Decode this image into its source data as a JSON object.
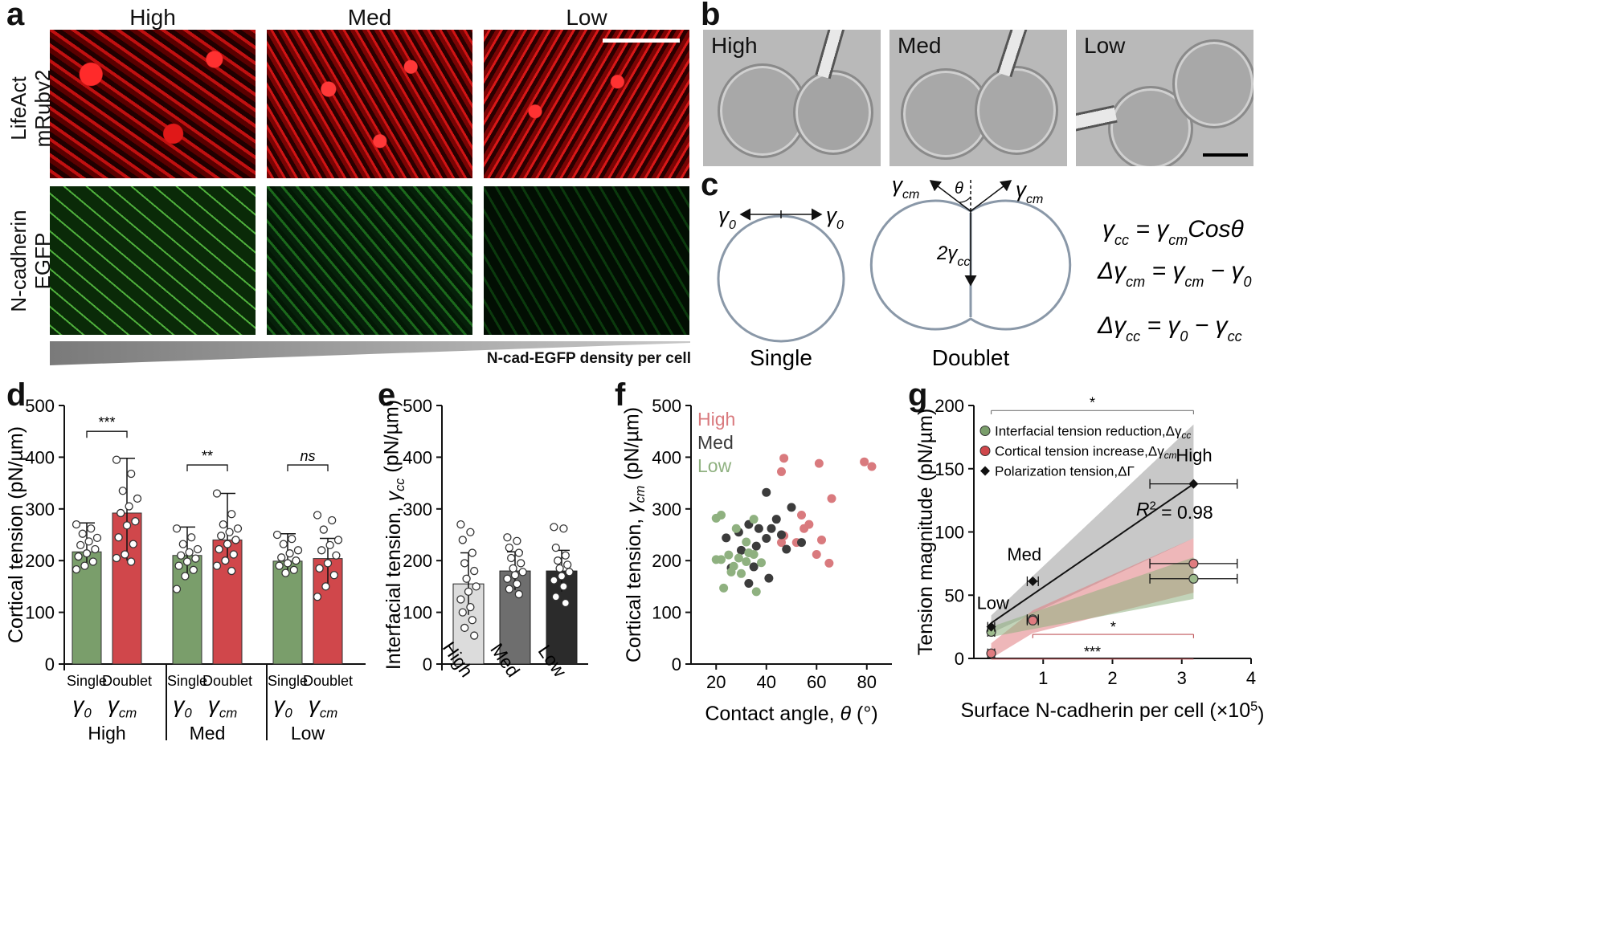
{
  "panels": {
    "a": {
      "letter": "a",
      "columns": [
        "High",
        "Med",
        "Low"
      ],
      "rows": [
        "LifeAct\nmRuby2",
        "N-cadherin\nEGFP"
      ],
      "gradient_label": "N-cad-EGFP density per cell"
    },
    "b": {
      "letter": "b",
      "labels": [
        "High",
        "Med",
        "Low"
      ]
    },
    "c": {
      "letter": "c",
      "single_label": "Single",
      "doublet_label": "Doublet",
      "gamma0": "γ",
      "sub0": "0",
      "gammacm": "γ",
      "subcm": "cm",
      "theta": "θ",
      "two_gamma_cc": "2γ",
      "subcc": "cc",
      "eq1": "γcc = γcm Cosθ",
      "eq2": "Δγcm = γcm − γ0",
      "eq3": "Δγcc = γ0 − γcc"
    },
    "d": {
      "letter": "d"
    },
    "e": {
      "letter": "e"
    },
    "f": {
      "letter": "f"
    },
    "g": {
      "letter": "g"
    }
  },
  "chart_data": [
    {
      "id": "d",
      "type": "bar",
      "ylabel": "Cortical tension (pN/µm)",
      "ylim": [
        0,
        500
      ],
      "yticks": [
        0,
        100,
        200,
        300,
        400,
        500
      ],
      "groups": [
        "High",
        "Med",
        "Low"
      ],
      "bar_labels": [
        "Single",
        "Doublet"
      ],
      "bar_symbols": [
        [
          "γ",
          "0"
        ],
        [
          "γ",
          "cm"
        ]
      ],
      "colors": [
        "#7a9e6b",
        "#d0474b"
      ],
      "values": [
        [
          217,
          292
        ],
        [
          210,
          240
        ],
        [
          199,
          204
        ]
      ],
      "sd_high": [
        [
          273,
          398
        ],
        [
          265,
          330
        ],
        [
          252,
          243
        ]
      ],
      "sd_low": [
        [
          185,
          200
        ],
        [
          165,
          195
        ],
        [
          175,
          145
        ]
      ],
      "points": [
        [
          [
            270,
            262,
            252,
            244,
            237,
            230,
            222,
            214,
            208,
            198,
            190,
            183
          ],
          [
            395,
            368,
            335,
            320,
            305,
            292,
            276,
            268,
            245,
            232,
            212,
            205,
            198
          ]
        ],
        [
          [
            262,
            245,
            232,
            222,
            216,
            210,
            204,
            198,
            190,
            182,
            170,
            145
          ],
          [
            330,
            290,
            270,
            262,
            255,
            248,
            240,
            232,
            222,
            212,
            200,
            190,
            180
          ]
        ],
        [
          [
            250,
            242,
            232,
            220,
            214,
            206,
            200,
            195,
            190,
            182,
            176
          ],
          [
            288,
            278,
            260,
            240,
            230,
            220,
            210,
            195,
            185,
            172,
            150,
            130
          ]
        ]
      ],
      "significance": [
        "***",
        "**",
        "ns"
      ]
    },
    {
      "id": "e",
      "type": "bar",
      "ylabel": "Interfacial tension, ",
      "ylabel_symbol": [
        "γ",
        "cc"
      ],
      "ylabel_unit": " (pN/µm)",
      "ylim": [
        0,
        500
      ],
      "yticks": [
        0,
        100,
        200,
        300,
        400,
        500
      ],
      "categories": [
        "High",
        "Med",
        "Low"
      ],
      "colors": [
        "#dcdcdc",
        "#6e6e6e",
        "#2b2b2b"
      ],
      "values": [
        155,
        180,
        180
      ],
      "sd_high": [
        215,
        217,
        220
      ],
      "sd_low": [
        95,
        143,
        140
      ],
      "points": [
        [
          270,
          255,
          240,
          215,
          195,
          180,
          165,
          150,
          140,
          125,
          110,
          100,
          85,
          70,
          55
        ],
        [
          245,
          238,
          225,
          215,
          205,
          195,
          185,
          178,
          172,
          165,
          155,
          145,
          135
        ],
        [
          265,
          262,
          225,
          210,
          200,
          192,
          185,
          178,
          170,
          162,
          150,
          130,
          118
        ]
      ]
    },
    {
      "id": "f",
      "type": "scatter",
      "xlabel": "Contact angle, ",
      "xlabel_symbol": "θ",
      "xlabel_unit": " (°)",
      "ylabel": "Cortical tension, ",
      "ylabel_symbol": [
        "γ",
        "cm"
      ],
      "ylabel_unit": " (pN/µm)",
      "xlim": [
        10,
        90
      ],
      "ylim": [
        0,
        500
      ],
      "xticks": [
        20,
        40,
        60,
        80
      ],
      "yticks": [
        0,
        100,
        200,
        300,
        400,
        500
      ],
      "legend": [
        "High",
        "Med",
        "Low"
      ],
      "legend_colors": [
        "#d0474b",
        "#3a3a3a",
        "#7a9e6b"
      ],
      "series": [
        {
          "name": "High",
          "color": "#d97a7e",
          "points": [
            [
              47,
              398
            ],
            [
              61,
              388
            ],
            [
              79,
              391
            ],
            [
              82,
              382
            ],
            [
              46,
              372
            ],
            [
              66,
              320
            ],
            [
              54,
              288
            ],
            [
              57,
              270
            ],
            [
              55,
              262
            ],
            [
              62,
              240
            ],
            [
              47,
              248
            ],
            [
              52,
              235
            ],
            [
              46,
              235
            ],
            [
              60,
              212
            ],
            [
              65,
              195
            ]
          ]
        },
        {
          "name": "Med",
          "color": "#3c3c3c",
          "points": [
            [
              40,
              332
            ],
            [
              50,
              303
            ],
            [
              44,
              280
            ],
            [
              42,
              262
            ],
            [
              33,
              270
            ],
            [
              37,
              262
            ],
            [
              29,
              255
            ],
            [
              24,
              244
            ],
            [
              40,
              243
            ],
            [
              46,
              250
            ],
            [
              48,
              222
            ],
            [
              54,
              235
            ],
            [
              36,
              228
            ],
            [
              30,
              220
            ],
            [
              26,
              186
            ],
            [
              35,
              188
            ],
            [
              33,
              156
            ],
            [
              41,
              166
            ]
          ]
        },
        {
          "name": "Low",
          "color": "#8fb180",
          "points": [
            [
              22,
              288
            ],
            [
              20,
              282
            ],
            [
              35,
              280
            ],
            [
              28,
              262
            ],
            [
              32,
              236
            ],
            [
              22,
              202
            ],
            [
              20,
              202
            ],
            [
              25,
              211
            ],
            [
              29,
              205
            ],
            [
              32,
              198
            ],
            [
              35,
              212
            ],
            [
              27,
              189
            ],
            [
              30,
              175
            ],
            [
              26,
              178
            ],
            [
              23,
              147
            ],
            [
              36,
              140
            ],
            [
              38,
              196
            ],
            [
              33,
              215
            ]
          ]
        }
      ]
    },
    {
      "id": "g",
      "type": "scatter",
      "xlabel": "Surface N-cadherin per cell (×10",
      "xlabel_exp": "5",
      "xlabel_end": ")",
      "ylabel": "Tension magnitude (pN/µm)",
      "xlim": [
        0,
        4
      ],
      "ylim": [
        0,
        200
      ],
      "xticks": [
        1,
        2,
        3,
        4
      ],
      "yticks": [
        0,
        50,
        100,
        150,
        200
      ],
      "legend": [
        {
          "label": "Interfacial tension reduction,Δγ",
          "sub": "cc",
          "color": "#7a9e6b",
          "marker": "circle"
        },
        {
          "label": "Cortical tension increase,Δγ",
          "sub": "cm",
          "color": "#d0474b",
          "marker": "circle"
        },
        {
          "label": "Polarization tension,ΔΓ",
          "sub": "",
          "color": "#111",
          "marker": "diamond"
        }
      ],
      "labels": {
        "high": "High",
        "med": "Med",
        "low": "Low"
      },
      "r2_label": "R",
      "r2_exp": "2",
      "r2_value": " = 0.98",
      "significance": [
        "*",
        "*",
        "***"
      ],
      "series": [
        {
          "name": "Interfacial tension reduction",
          "color": "#9dbb8d",
          "points": [
            [
              0.25,
              21
            ],
            [
              0.85,
              31
            ],
            [
              3.17,
              63
            ]
          ],
          "xerr": [
            0.05,
            0.08,
            0.63
          ]
        },
        {
          "name": "Cortical tension increase",
          "color": "#e07c80",
          "points": [
            [
              0.25,
              4
            ],
            [
              0.85,
              30
            ],
            [
              3.17,
              75
            ]
          ],
          "xerr": [
            0.05,
            0.08,
            0.63
          ]
        },
        {
          "name": "Polarization tension",
          "color": "#111",
          "points": [
            [
              0.25,
              25
            ],
            [
              0.85,
              61
            ],
            [
              3.17,
              138
            ]
          ],
          "xerr": [
            0.05,
            0.08,
            0.63
          ]
        }
      ]
    }
  ]
}
